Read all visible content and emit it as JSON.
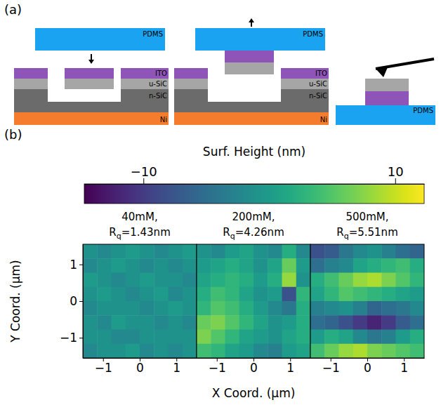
{
  "figure": {
    "panel_labels": [
      "(a)",
      "(b)"
    ]
  },
  "diagram": {
    "schematics": [
      {
        "labels": {
          "pdms": "PDMS",
          "ito": "ITO",
          "usic": "u-SiC",
          "nsic": "n-SiC",
          "ni": "Ni"
        }
      },
      {
        "labels": {
          "pdms": "PDMS",
          "ito": "ITO",
          "usic": "u-SiC",
          "nsic": "n-SiC",
          "ni": "Ni"
        }
      },
      {
        "labels": {
          "pdms": "PDMS"
        }
      }
    ]
  },
  "colorbar": {
    "title": "Surf. Height (nm)",
    "range": [
      -14.7,
      12.3
    ],
    "ticks": [
      {
        "value": -10,
        "label": "−10"
      },
      10
    ]
  },
  "chart_data": [
    {
      "type": "heatmap",
      "title": "40mM, Rq=1.43nm",
      "ylabel": "Y Coord. (μm)",
      "xlim": [
        -1.55,
        1.55
      ],
      "ylim": [
        -1.55,
        1.55
      ],
      "xticks": [
        {
          "value": -1,
          "label": "−1"
        },
        0,
        1
      ],
      "yticks": [
        {
          "value": -1,
          "label": "−1"
        },
        0,
        1
      ],
      "cells": [
        [
          -1,
          -2,
          -1,
          0,
          -1,
          -2,
          -1,
          0
        ],
        [
          -2,
          -1,
          0,
          -1,
          -2,
          -1,
          -2,
          -1
        ],
        [
          0,
          -1,
          -2,
          -1,
          0,
          -1,
          -1,
          -2
        ],
        [
          -1,
          0,
          -1,
          -2,
          -1,
          0,
          -2,
          -1
        ],
        [
          -2,
          -1,
          -1,
          -1,
          -2,
          -1,
          0,
          -1
        ],
        [
          -1,
          -2,
          0,
          -1,
          -1,
          -2,
          -1,
          -2
        ],
        [
          -1,
          -1,
          -2,
          -2,
          -1,
          -1,
          -1,
          -1
        ],
        [
          -2,
          -1,
          -1,
          0,
          -2,
          -1,
          -2,
          -1
        ]
      ]
    },
    {
      "type": "heatmap",
      "title": "200mM, Rq=4.26nm",
      "xlabel": "X Coord. (μm)",
      "xlim": [
        -1.55,
        1.55
      ],
      "ylim": [
        -1.55,
        1.55
      ],
      "xticks": [
        {
          "value": -1,
          "label": "−1"
        },
        0,
        1
      ],
      "cells": [
        [
          -1,
          -2,
          0,
          1,
          -1,
          -2,
          2,
          -2
        ],
        [
          0,
          1,
          2,
          1,
          -1,
          1,
          6,
          0
        ],
        [
          1,
          2,
          3,
          2,
          0,
          2,
          8,
          -1
        ],
        [
          2,
          4,
          3,
          1,
          -1,
          0,
          -8,
          3
        ],
        [
          3,
          5,
          4,
          2,
          0,
          -2,
          -4,
          2
        ],
        [
          6,
          7,
          5,
          3,
          1,
          -1,
          0,
          2
        ],
        [
          7,
          5,
          3,
          1,
          0,
          -1,
          1,
          2
        ],
        [
          4,
          3,
          1,
          0,
          -2,
          -3,
          0,
          1
        ]
      ]
    },
    {
      "type": "heatmap",
      "title": "500mM, Rq=5.51nm",
      "xlim": [
        -1.55,
        1.55
      ],
      "ylim": [
        -1.55,
        1.55
      ],
      "xticks": [
        {
          "value": -1,
          "label": "−1"
        },
        0,
        1
      ],
      "cells": [
        [
          -8,
          -7,
          -4,
          -2,
          -1,
          -3,
          -5,
          -6
        ],
        [
          -5,
          -3,
          -2,
          1,
          2,
          3,
          4,
          2
        ],
        [
          2,
          4,
          6,
          8,
          9,
          7,
          5,
          3
        ],
        [
          1,
          3,
          5,
          4,
          3,
          2,
          1,
          0
        ],
        [
          -3,
          -2,
          -1,
          -3,
          -6,
          -5,
          -4,
          -2
        ],
        [
          -5,
          -6,
          -8,
          -10,
          -12,
          -10,
          -7,
          -5
        ],
        [
          0,
          2,
          1,
          -2,
          -4,
          -3,
          0,
          2
        ],
        [
          4,
          6,
          8,
          9,
          7,
          6,
          5,
          4
        ]
      ]
    }
  ]
}
